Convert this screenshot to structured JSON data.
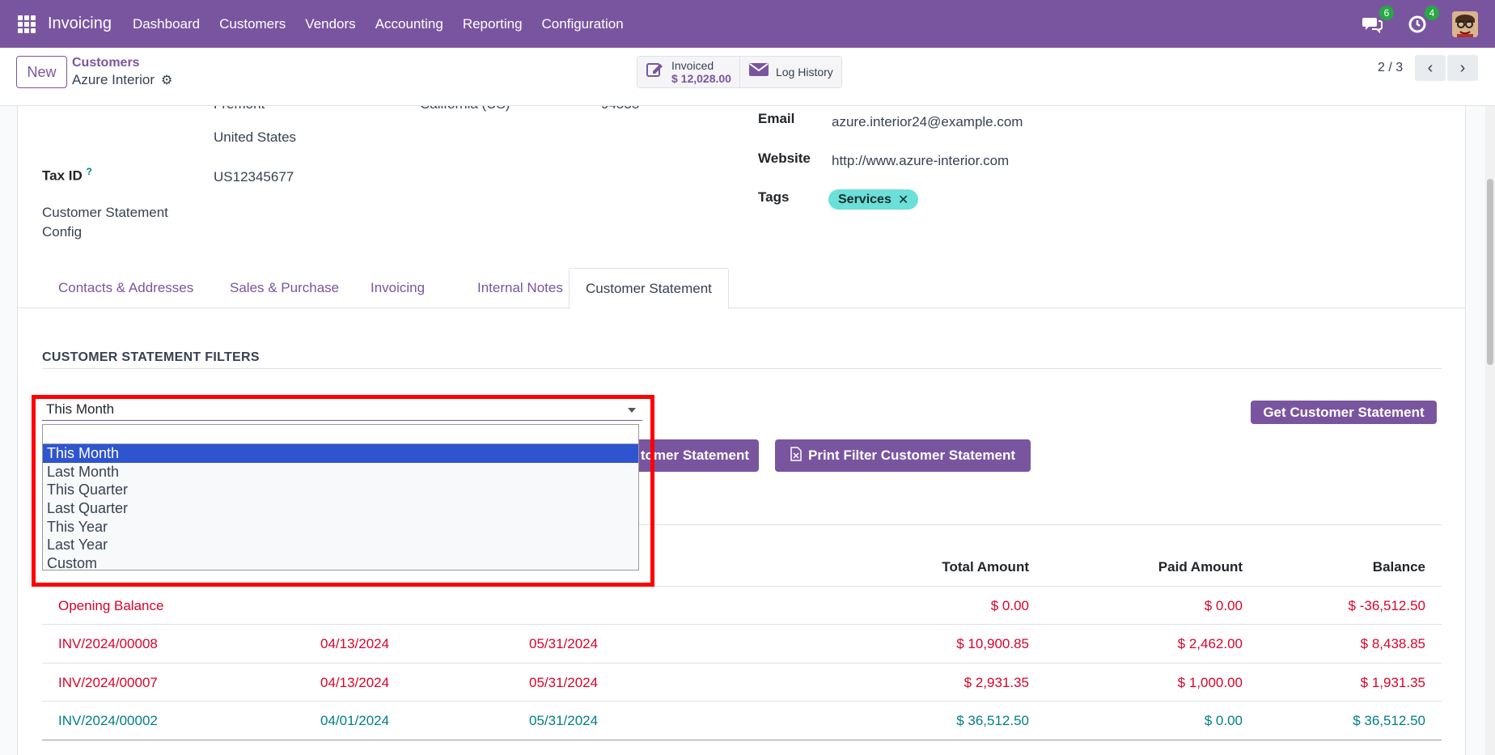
{
  "navbar": {
    "app_name": "Invoicing",
    "menu": [
      "Dashboard",
      "Customers",
      "Vendors",
      "Accounting",
      "Reporting",
      "Configuration"
    ],
    "messages_badge": "6",
    "activities_badge": "4",
    "brand_color": "#7a559f"
  },
  "control": {
    "new_label": "New",
    "breadcrumb_parent": "Customers",
    "breadcrumb_current": "Azure Interior",
    "invoiced_label": "Invoiced",
    "invoiced_value": "$ 12,028.00",
    "log_history_label": "Log History",
    "pager": "2 / 3"
  },
  "form": {
    "city_partial": "Fremont",
    "state_partial": "California (US)",
    "zip_partial": "94538",
    "country": "United States",
    "tax_id_label": "Tax ID",
    "tax_id_help": "?",
    "tax_id_value": "US12345677",
    "statement_config_label_1": "Customer Statement",
    "statement_config_label_2": "Config",
    "email_label": "Email",
    "email_value": "azure.interior24@example.com",
    "website_label": "Website",
    "website_value": "http://www.azure-interior.com",
    "tags_label": "Tags",
    "tag_value": "Services",
    "tag_remove": "✕"
  },
  "tabs": [
    "Contacts & Addresses",
    "Sales & Purchase",
    "Invoicing",
    "Internal Notes",
    "Customer Statement"
  ],
  "statement": {
    "section_title": "CUSTOMER STATEMENT FILTERS",
    "filter_selected": "This Month",
    "filter_options": [
      "This Month",
      "Last Month",
      "This Quarter",
      "Last Quarter",
      "This Year",
      "Last Year",
      "Custom"
    ],
    "get_statement_label": "Get Customer Statement",
    "hidden_button_partial": "tomer Statement",
    "print_filter_label": "Print Filter Customer Statement",
    "columns": {
      "total": "Total Amount",
      "paid": "Paid Amount",
      "balance": "Balance"
    },
    "opening": {
      "label": "Opening Balance",
      "total": "$ 0.00",
      "paid": "$ 0.00",
      "balance": "$ -36,512.50"
    },
    "rows": [
      {
        "ref": "INV/2024/00008",
        "date": "04/13/2024",
        "due": "05/31/2024",
        "total": "$ 10,900.85",
        "paid": "$ 2,462.00",
        "balance": "$ 8,438.85"
      },
      {
        "ref": "INV/2024/00007",
        "date": "04/13/2024",
        "due": "05/31/2024",
        "total": "$ 2,931.35",
        "paid": "$ 1,000.00",
        "balance": "$ 1,931.35"
      },
      {
        "ref": "INV/2024/00002",
        "date": "04/01/2024",
        "due": "05/31/2024",
        "total": "$ 36,512.50",
        "paid": "$ 0.00",
        "balance": "$ 36,512.50"
      }
    ]
  }
}
